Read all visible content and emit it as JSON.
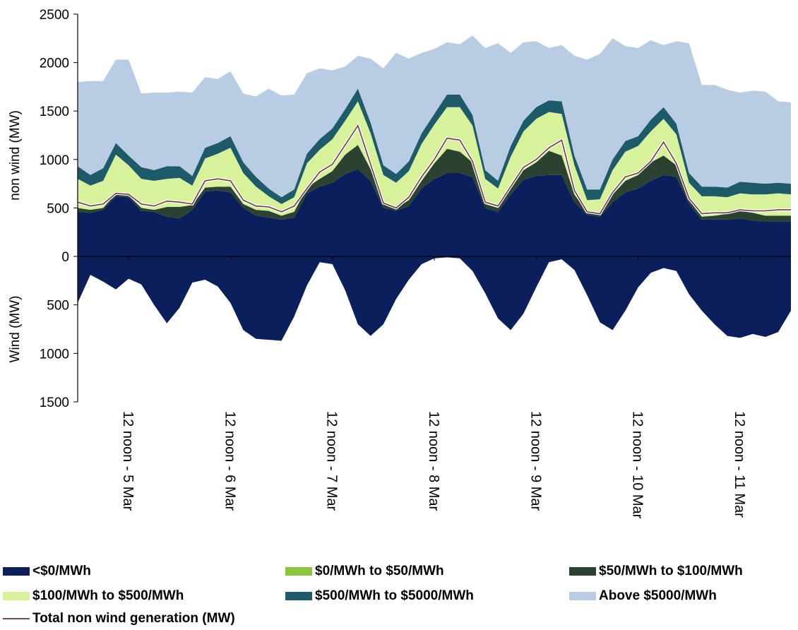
{
  "chart_data": {
    "type": "area",
    "y_axis_top": {
      "label": "non wind (MW)",
      "range": [
        0,
        2500
      ],
      "ticks": [
        0,
        500,
        1000,
        1500,
        2000,
        2500
      ]
    },
    "y_axis_bottom": {
      "label": "Wind (MW)",
      "range": [
        0,
        1500
      ],
      "ticks": [
        500,
        1000,
        1500
      ]
    },
    "x_tick_labels": [
      "12 noon - 5 Mar",
      "12 noon - 6 Mar",
      "12 noon - 7 Mar",
      "12 noon - 8 Mar",
      "12 noon - 9 Mar",
      "12 noon - 10 Mar",
      "12 noon - 11 Mar"
    ],
    "x_period_hours": [
      0,
      168
    ],
    "x_tick_hours": [
      12,
      36,
      60,
      84,
      108,
      132,
      156
    ],
    "hours": [
      0,
      3,
      6,
      9,
      12,
      15,
      18,
      21,
      24,
      27,
      30,
      33,
      36,
      39,
      42,
      45,
      48,
      51,
      54,
      57,
      60,
      63,
      66,
      69,
      72,
      75,
      78,
      81,
      84,
      87,
      90,
      93,
      96,
      99,
      102,
      105,
      108,
      111,
      114,
      117,
      120,
      123,
      126,
      129,
      132,
      135,
      138,
      141,
      144,
      147,
      150,
      153,
      156,
      159,
      162,
      165,
      168
    ],
    "series": [
      {
        "name": "<$0/MWh",
        "color": "#0b1f5c",
        "values": [
          460,
          450,
          480,
          620,
          610,
          470,
          460,
          410,
          390,
          480,
          670,
          680,
          660,
          500,
          420,
          400,
          380,
          400,
          650,
          720,
          760,
          850,
          900,
          780,
          500,
          470,
          520,
          700,
          800,
          860,
          860,
          820,
          500,
          460,
          640,
          790,
          830,
          840,
          840,
          560,
          430,
          410,
          560,
          660,
          700,
          780,
          840,
          820,
          540,
          380,
          380,
          380,
          390,
          370,
          360,
          360,
          360
        ]
      },
      {
        "name": "$0/MWh to $50/MWh",
        "color": "#8cc63f",
        "values": [
          0,
          0,
          0,
          0,
          0,
          0,
          0,
          0,
          0,
          0,
          0,
          0,
          0,
          0,
          0,
          0,
          0,
          0,
          0,
          0,
          0,
          0,
          0,
          0,
          0,
          0,
          0,
          0,
          0,
          0,
          0,
          0,
          0,
          0,
          0,
          0,
          0,
          0,
          0,
          0,
          0,
          0,
          0,
          0,
          0,
          0,
          0,
          0,
          0,
          0,
          0,
          0,
          0,
          0,
          0,
          0,
          0
        ]
      },
      {
        "name": "$50/MWh to $100/MWh",
        "color": "#2b4230",
        "values": [
          40,
          30,
          20,
          30,
          20,
          30,
          20,
          100,
          120,
          50,
          40,
          40,
          60,
          40,
          60,
          70,
          40,
          60,
          60,
          80,
          120,
          200,
          250,
          120,
          40,
          30,
          60,
          80,
          160,
          250,
          220,
          150,
          40,
          40,
          60,
          100,
          140,
          250,
          200,
          80,
          30,
          30,
          80,
          120,
          140,
          190,
          200,
          120,
          40,
          30,
          40,
          60,
          80,
          80,
          60,
          60,
          60
        ]
      },
      {
        "name": "$100/MWh to $500/MWh",
        "color": "#d7f29b",
        "values": [
          300,
          250,
          280,
          400,
          310,
          300,
          300,
          290,
          300,
          200,
          300,
          340,
          400,
          320,
          240,
          150,
          120,
          150,
          250,
          300,
          330,
          350,
          450,
          370,
          300,
          260,
          300,
          380,
          400,
          430,
          460,
          380,
          260,
          200,
          330,
          400,
          450,
          400,
          430,
          300,
          120,
          150,
          250,
          300,
          300,
          320,
          380,
          320,
          180,
          210,
          200,
          170,
          180,
          190,
          220,
          230,
          220
        ]
      },
      {
        "name": "$500/MWh to $5000/MWh",
        "color": "#1d5a6a",
        "values": [
          130,
          110,
          130,
          120,
          100,
          120,
          110,
          130,
          120,
          100,
          110,
          110,
          120,
          110,
          100,
          80,
          70,
          80,
          100,
          110,
          110,
          120,
          130,
          110,
          100,
          90,
          100,
          110,
          110,
          130,
          130,
          110,
          90,
          80,
          110,
          110,
          120,
          120,
          130,
          100,
          110,
          100,
          110,
          110,
          100,
          120,
          120,
          110,
          100,
          100,
          100,
          100,
          120,
          120,
          110,
          110,
          110
        ]
      },
      {
        "name": "Above $5000/MWh",
        "color": "#b8cce4",
        "values": [
          870,
          970,
          900,
          860,
          990,
          760,
          800,
          760,
          770,
          860,
          730,
          660,
          670,
          710,
          830,
          1030,
          1050,
          980,
          830,
          730,
          600,
          440,
          340,
          660,
          1000,
          1250,
          1060,
          830,
          670,
          540,
          520,
          820,
          1260,
          1420,
          960,
          810,
          680,
          540,
          580,
          1030,
          1340,
          1400,
          1250,
          980,
          910,
          820,
          640,
          850,
          1340,
          1050,
          1050,
          1010,
          920,
          950,
          950,
          840,
          840
        ]
      },
      {
        "name": "Total non wind generation (MW)",
        "color": "#6b3a46",
        "values": [
          560,
          520,
          540,
          650,
          640,
          540,
          520,
          570,
          560,
          540,
          780,
          800,
          780,
          580,
          520,
          510,
          460,
          520,
          700,
          870,
          950,
          1150,
          1350,
          950,
          550,
          500,
          610,
          820,
          1000,
          1220,
          1200,
          980,
          560,
          520,
          720,
          920,
          1000,
          1120,
          1200,
          680,
          460,
          440,
          660,
          820,
          860,
          980,
          1180,
          960,
          600,
          440,
          450,
          450,
          480,
          470,
          470,
          480,
          480
        ]
      },
      {
        "name": "Wind",
        "color": "#0b1f5c",
        "values": [
          480,
          190,
          260,
          340,
          230,
          290,
          500,
          690,
          530,
          270,
          240,
          310,
          480,
          760,
          850,
          860,
          870,
          620,
          300,
          60,
          80,
          350,
          700,
          820,
          700,
          440,
          240,
          80,
          20,
          10,
          20,
          150,
          380,
          640,
          760,
          590,
          320,
          60,
          30,
          140,
          400,
          680,
          760,
          560,
          320,
          170,
          120,
          150,
          390,
          560,
          700,
          820,
          840,
          800,
          830,
          780,
          560
        ]
      }
    ]
  }
}
